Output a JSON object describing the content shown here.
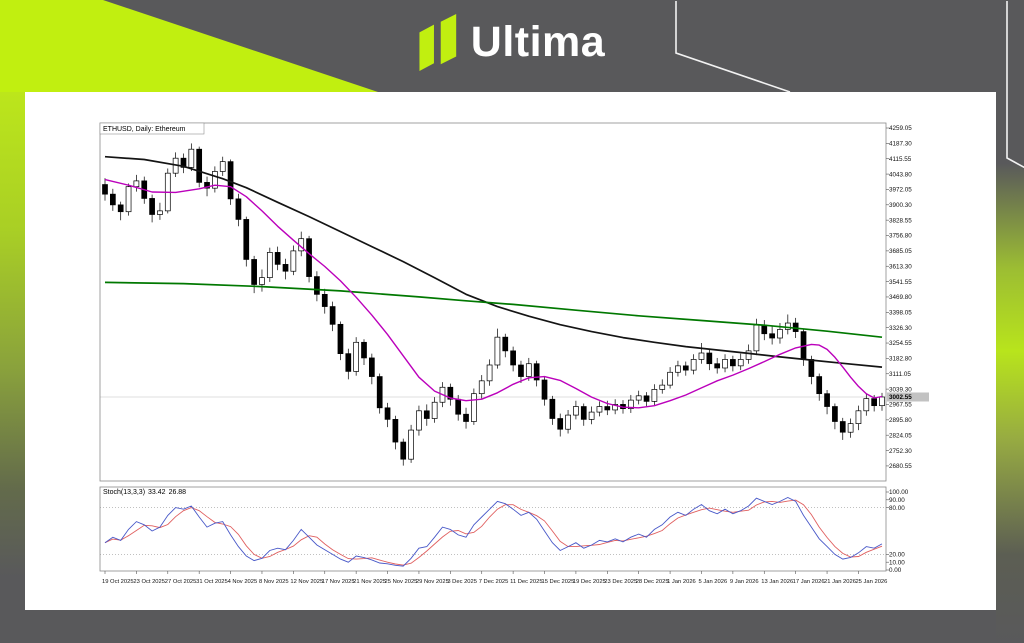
{
  "branding": {
    "logo_text": "Ultima",
    "accent_color": "#c1ef10",
    "background_color": "#59595b",
    "logo_text_color": "#ffffff"
  },
  "window": {
    "panel_bg": "#ffffff",
    "frame_color": "#8a8a8a",
    "bid_line_color": "#d4d4d4",
    "bid_box_color": "#c2c2c2"
  },
  "chart_data": {
    "type": "candlestick",
    "title": "ETHUSD, Daily: Ethereum",
    "symbol": "ETHUSD",
    "timeframe": "Daily",
    "description": "Ethereum",
    "grid": "none",
    "ylim": [
      2609,
      4331
    ],
    "x_labels": [
      "19 Oct 2025",
      "23 Oct 2025",
      "27 Oct 2025",
      "31 Oct 2025",
      "4 Nov 2025",
      "8 Nov 2025",
      "12 Nov 2025",
      "17 Nov 2025",
      "21 Nov 2025",
      "25 Nov 2025",
      "29 Nov 2025",
      "3 Dec 2025",
      "7 Dec 2025",
      "11 Dec 2025",
      "15 Dec 2025",
      "19 Dec 2025",
      "23 Dec 2025",
      "28 Dec 2025",
      "1 Jan 2026",
      "5 Jan 2026",
      "9 Jan 2026",
      "13 Jan 2026",
      "17 Jan 2026",
      "21 Jan 2026",
      "25 Jan 2026"
    ],
    "x_label_every_n_candles": 4,
    "price_axis": {
      "ticks": [
        4259.05,
        4187.3,
        4115.55,
        4043.8,
        3972.05,
        3900.3,
        3828.55,
        3756.8,
        3685.05,
        3613.3,
        3541.55,
        3469.8,
        3398.05,
        3326.3,
        3254.55,
        3182.8,
        3111.05,
        3039.3,
        2967.55,
        2895.8,
        2824.05,
        2752.3,
        2680.55
      ],
      "current_price": 3002.55,
      "current_price_label": "3002.55"
    },
    "candles": {
      "up_color": "#ffffff",
      "down_color": "#000000",
      "outline_color": "#000000",
      "ohlc": [
        [
          3995,
          4025,
          3920,
          3950
        ],
        [
          3950,
          3975,
          3872,
          3900
        ],
        [
          3900,
          3915,
          3828,
          3868
        ],
        [
          3868,
          4000,
          3850,
          3985
        ],
        [
          3985,
          4040,
          3962,
          4012
        ],
        [
          4012,
          4032,
          3905,
          3930
        ],
        [
          3930,
          3948,
          3818,
          3855
        ],
        [
          3855,
          3910,
          3830,
          3872
        ],
        [
          3872,
          4070,
          3860,
          4048
        ],
        [
          4048,
          4145,
          4030,
          4118
        ],
        [
          4118,
          4140,
          4048,
          4075
        ],
        [
          4075,
          4187,
          4058,
          4160
        ],
        [
          4160,
          4172,
          3982,
          4005
        ],
        [
          4005,
          4032,
          3940,
          3978
        ],
        [
          3978,
          4080,
          3958,
          4056
        ],
        [
          4056,
          4125,
          4035,
          4102
        ],
        [
          4102,
          4112,
          3900,
          3928
        ],
        [
          3928,
          3952,
          3800,
          3832
        ],
        [
          3832,
          3845,
          3612,
          3645
        ],
        [
          3645,
          3662,
          3488,
          3528
        ],
        [
          3528,
          3598,
          3495,
          3560
        ],
        [
          3560,
          3700,
          3540,
          3678
        ],
        [
          3678,
          3705,
          3595,
          3622
        ],
        [
          3622,
          3648,
          3552,
          3590
        ],
        [
          3590,
          3710,
          3572,
          3685
        ],
        [
          3685,
          3775,
          3660,
          3742
        ],
        [
          3742,
          3755,
          3538,
          3565
        ],
        [
          3565,
          3590,
          3450,
          3482
        ],
        [
          3482,
          3508,
          3392,
          3425
        ],
        [
          3425,
          3448,
          3310,
          3342
        ],
        [
          3342,
          3355,
          3175,
          3205
        ],
        [
          3205,
          3228,
          3085,
          3122
        ],
        [
          3122,
          3282,
          3102,
          3258
        ],
        [
          3258,
          3272,
          3152,
          3185
        ],
        [
          3185,
          3205,
          3062,
          3098
        ],
        [
          3098,
          3112,
          2925,
          2952
        ],
        [
          2952,
          2975,
          2862,
          2898
        ],
        [
          2898,
          2915,
          2758,
          2792
        ],
        [
          2792,
          2808,
          2682,
          2712
        ],
        [
          2712,
          2872,
          2695,
          2848
        ],
        [
          2848,
          2962,
          2822,
          2938
        ],
        [
          2938,
          2968,
          2868,
          2902
        ],
        [
          2902,
          3002,
          2882,
          2978
        ],
        [
          2978,
          3072,
          2955,
          3048
        ],
        [
          3048,
          3065,
          2962,
          2992
        ],
        [
          2992,
          3012,
          2892,
          2922
        ],
        [
          2922,
          2952,
          2855,
          2888
        ],
        [
          2888,
          3042,
          2872,
          3018
        ],
        [
          3018,
          3105,
          2995,
          3078
        ],
        [
          3078,
          3178,
          3055,
          3152
        ],
        [
          3152,
          3322,
          3135,
          3282
        ],
        [
          3282,
          3298,
          3188,
          3218
        ],
        [
          3218,
          3238,
          3122,
          3152
        ],
        [
          3152,
          3172,
          3068,
          3098
        ],
        [
          3098,
          3185,
          3078,
          3158
        ],
        [
          3158,
          3172,
          3052,
          3082
        ],
        [
          3082,
          3098,
          2962,
          2992
        ],
        [
          2992,
          3008,
          2872,
          2902
        ],
        [
          2902,
          2925,
          2818,
          2852
        ],
        [
          2852,
          2942,
          2832,
          2918
        ],
        [
          2918,
          2985,
          2898,
          2958
        ],
        [
          2958,
          2972,
          2868,
          2898
        ],
        [
          2898,
          2958,
          2875,
          2932
        ],
        [
          2932,
          2982,
          2912,
          2958
        ],
        [
          2958,
          2985,
          2918,
          2942
        ],
        [
          2942,
          2992,
          2922,
          2968
        ],
        [
          2968,
          2988,
          2925,
          2948
        ],
        [
          2948,
          3012,
          2928,
          2988
        ],
        [
          2988,
          3032,
          2968,
          3008
        ],
        [
          3008,
          3025,
          2958,
          2982
        ],
        [
          2982,
          3062,
          2965,
          3038
        ],
        [
          3038,
          3085,
          3018,
          3058
        ],
        [
          3058,
          3142,
          3042,
          3118
        ],
        [
          3118,
          3172,
          3098,
          3148
        ],
        [
          3148,
          3168,
          3102,
          3128
        ],
        [
          3128,
          3202,
          3108,
          3178
        ],
        [
          3178,
          3255,
          3158,
          3208
        ],
        [
          3208,
          3225,
          3128,
          3158
        ],
        [
          3158,
          3185,
          3112,
          3138
        ],
        [
          3138,
          3202,
          3118,
          3178
        ],
        [
          3178,
          3195,
          3122,
          3148
        ],
        [
          3148,
          3205,
          3128,
          3178
        ],
        [
          3178,
          3248,
          3158,
          3218
        ],
        [
          3218,
          3368,
          3198,
          3338
        ],
        [
          3338,
          3362,
          3268,
          3298
        ],
        [
          3298,
          3332,
          3248,
          3278
        ],
        [
          3278,
          3348,
          3252,
          3318
        ],
        [
          3318,
          3388,
          3295,
          3348
        ],
        [
          3348,
          3372,
          3278,
          3308
        ],
        [
          3308,
          3322,
          3148,
          3178
        ],
        [
          3178,
          3195,
          3062,
          3098
        ],
        [
          3098,
          3112,
          2985,
          3018
        ],
        [
          3018,
          3035,
          2922,
          2958
        ],
        [
          2958,
          2972,
          2852,
          2888
        ],
        [
          2888,
          2905,
          2802,
          2838
        ],
        [
          2838,
          2902,
          2812,
          2878
        ],
        [
          2878,
          2962,
          2848,
          2938
        ],
        [
          2938,
          3018,
          2915,
          2995
        ],
        [
          2995,
          3012,
          2935,
          2962
        ],
        [
          2962,
          3022,
          2938,
          3002.55
        ]
      ]
    },
    "overlays": [
      {
        "name": "slow-ma",
        "color": "#141414",
        "width": 1.7,
        "points": [
          [
            0,
            4125
          ],
          [
            5,
            4112
          ],
          [
            10,
            4080
          ],
          [
            15,
            4022
          ],
          [
            18,
            3980
          ],
          [
            22,
            3912
          ],
          [
            26,
            3845
          ],
          [
            30,
            3775
          ],
          [
            34,
            3705
          ],
          [
            38,
            3635
          ],
          [
            42,
            3560
          ],
          [
            46,
            3482
          ],
          [
            50,
            3425
          ],
          [
            54,
            3380
          ],
          [
            58,
            3340
          ],
          [
            62,
            3308
          ],
          [
            66,
            3280
          ],
          [
            70,
            3258
          ],
          [
            74,
            3238
          ],
          [
            78,
            3222
          ],
          [
            82,
            3206
          ],
          [
            86,
            3190
          ],
          [
            90,
            3175
          ],
          [
            94,
            3160
          ],
          [
            99,
            3142
          ]
        ]
      },
      {
        "name": "medium-ma",
        "color": "#007800",
        "width": 1.7,
        "points": [
          [
            0,
            3538
          ],
          [
            10,
            3532
          ],
          [
            20,
            3518
          ],
          [
            30,
            3498
          ],
          [
            40,
            3470
          ],
          [
            46,
            3452
          ],
          [
            52,
            3435
          ],
          [
            60,
            3408
          ],
          [
            68,
            3382
          ],
          [
            76,
            3360
          ],
          [
            84,
            3338
          ],
          [
            92,
            3310
          ],
          [
            99,
            3282
          ]
        ]
      },
      {
        "name": "fast-ma",
        "color": "#bb00bb",
        "width": 1.4,
        "points": [
          [
            0,
            4018
          ],
          [
            3,
            3992
          ],
          [
            6,
            3960
          ],
          [
            9,
            3958
          ],
          [
            12,
            3975
          ],
          [
            14,
            3992
          ],
          [
            16,
            3985
          ],
          [
            18,
            3938
          ],
          [
            20,
            3872
          ],
          [
            22,
            3800
          ],
          [
            24,
            3735
          ],
          [
            26,
            3672
          ],
          [
            28,
            3612
          ],
          [
            30,
            3545
          ],
          [
            32,
            3468
          ],
          [
            34,
            3385
          ],
          [
            36,
            3295
          ],
          [
            38,
            3195
          ],
          [
            40,
            3095
          ],
          [
            42,
            3030
          ],
          [
            44,
            2998
          ],
          [
            46,
            2985
          ],
          [
            48,
            2992
          ],
          [
            50,
            3022
          ],
          [
            52,
            3062
          ],
          [
            54,
            3092
          ],
          [
            56,
            3098
          ],
          [
            58,
            3080
          ],
          [
            60,
            3042
          ],
          [
            62,
            3002
          ],
          [
            64,
            2972
          ],
          [
            66,
            2955
          ],
          [
            68,
            2952
          ],
          [
            70,
            2962
          ],
          [
            72,
            2985
          ],
          [
            74,
            3012
          ],
          [
            76,
            3045
          ],
          [
            78,
            3078
          ],
          [
            80,
            3105
          ],
          [
            82,
            3135
          ],
          [
            84,
            3168
          ],
          [
            86,
            3202
          ],
          [
            88,
            3232
          ],
          [
            90,
            3248
          ],
          [
            91,
            3245
          ],
          [
            92,
            3225
          ],
          [
            93,
            3188
          ],
          [
            94,
            3142
          ],
          [
            95,
            3095
          ],
          [
            96,
            3052
          ],
          [
            97,
            3018
          ],
          [
            98,
            2998
          ],
          [
            99,
            3005
          ]
        ]
      }
    ],
    "stochastic": {
      "label": "Stoch(13,3,3)",
      "k_value_text": "33.42",
      "d_value_text": "26.88",
      "k_color": "#4858c8",
      "d_color": "#e06060",
      "range": [
        0,
        100
      ],
      "levels": [
        80,
        20
      ],
      "axis_labels": [
        100.0,
        90.0,
        80.0,
        20.0,
        10.0,
        0.0
      ],
      "k_values": [
        35,
        42,
        38,
        52,
        62,
        58,
        50,
        55,
        70,
        80,
        78,
        82,
        68,
        55,
        60,
        62,
        45,
        30,
        18,
        12,
        15,
        25,
        28,
        26,
        38,
        52,
        42,
        32,
        26,
        20,
        14,
        10,
        18,
        16,
        13,
        9,
        8,
        6,
        5,
        15,
        28,
        30,
        42,
        55,
        52,
        45,
        42,
        58,
        68,
        78,
        88,
        85,
        78,
        70,
        74,
        65,
        50,
        35,
        25,
        30,
        35,
        28,
        32,
        38,
        36,
        40,
        36,
        42,
        46,
        42,
        52,
        58,
        68,
        74,
        70,
        78,
        84,
        76,
        72,
        78,
        72,
        76,
        82,
        92,
        88,
        84,
        88,
        93,
        88,
        70,
        55,
        40,
        30,
        20,
        14,
        16,
        22,
        30,
        28,
        33.42
      ]
    }
  }
}
